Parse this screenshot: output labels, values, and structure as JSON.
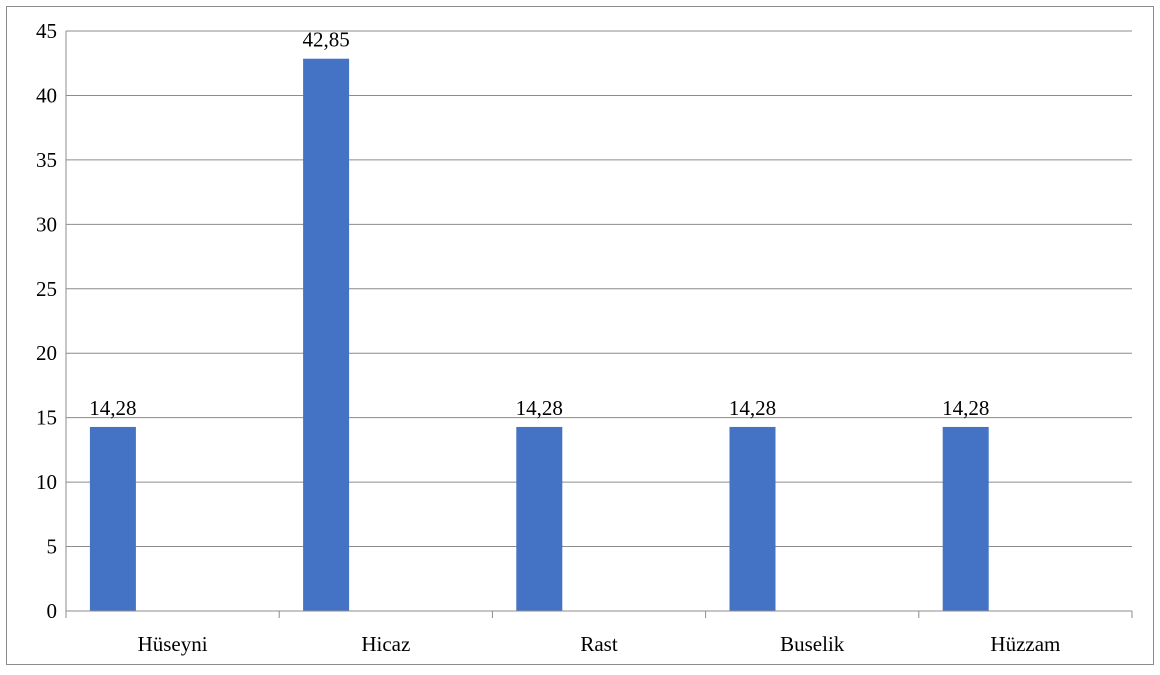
{
  "chart_data": {
    "type": "bar",
    "title": "",
    "xlabel": "",
    "ylabel": "",
    "categories": [
      "Hüseyni",
      "Hicaz",
      "Rast",
      "Buselik",
      "Hüzzam"
    ],
    "values": [
      14.28,
      42.85,
      14.28,
      14.28,
      14.28
    ],
    "value_labels": [
      "14,28",
      "42,85",
      "14,28",
      "14,28",
      "14,28"
    ],
    "ylim": [
      0,
      45
    ],
    "yticks": [
      0,
      5,
      10,
      15,
      20,
      25,
      30,
      35,
      40,
      45
    ],
    "ytick_labels": [
      "0",
      "5",
      "10",
      "15",
      "20",
      "25",
      "30",
      "35",
      "40",
      "45"
    ],
    "grid": true,
    "legend": "none",
    "bar_color": "#4472c4",
    "grid_color": "#8c8c8c"
  }
}
